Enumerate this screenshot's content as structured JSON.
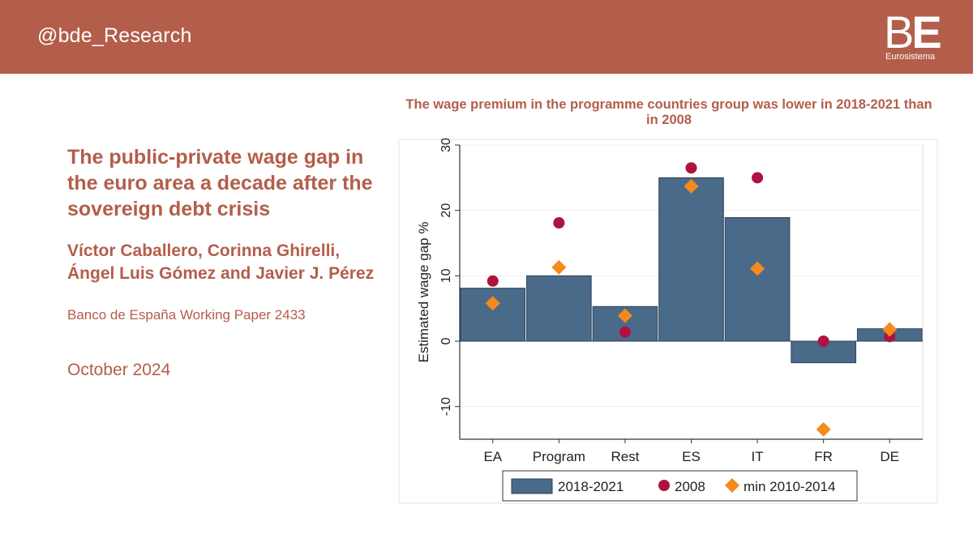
{
  "header": {
    "handle": "@bde_Research",
    "logo_letters": "BE",
    "logo_subtitle": "Eurosistema",
    "bg_color": "#b35e4a"
  },
  "paper": {
    "title": "The public-private wage gap in the euro area a decade after the sovereign debt crisis",
    "authors": "Víctor Caballero, Corinna Ghirelli, Ángel Luis Gómez and Javier J. Pérez",
    "series_label": "Banco de España Working Paper 2433",
    "date": "October 2024"
  },
  "chart_data": {
    "type": "bar",
    "title": "The wage premium in the programme countries group was lower in 2018-2021 than in 2008",
    "ylabel": "Estimated wage gap %",
    "xlabel": "",
    "ylim": [
      -15,
      30
    ],
    "yticks": [
      -10,
      0,
      10,
      20,
      30
    ],
    "grid": true,
    "legend_position": "bottom",
    "categories": [
      "EA",
      "Program",
      "Rest",
      "ES",
      "IT",
      "FR",
      "DE"
    ],
    "series": [
      {
        "name": "2018-2021",
        "mark": "bar",
        "color": "#4a6a8a",
        "values": [
          8.1,
          10.0,
          5.3,
          25.0,
          18.9,
          -3.3,
          1.9
        ]
      },
      {
        "name": "2008",
        "mark": "circle",
        "color": "#b0123f",
        "values": [
          9.2,
          18.1,
          1.4,
          26.5,
          25.0,
          0.0,
          0.7
        ]
      },
      {
        "name": "min 2010-2014",
        "mark": "diamond",
        "color": "#f58a1f",
        "values": [
          5.8,
          11.3,
          3.9,
          23.7,
          11.1,
          -13.5,
          1.8
        ]
      }
    ]
  }
}
